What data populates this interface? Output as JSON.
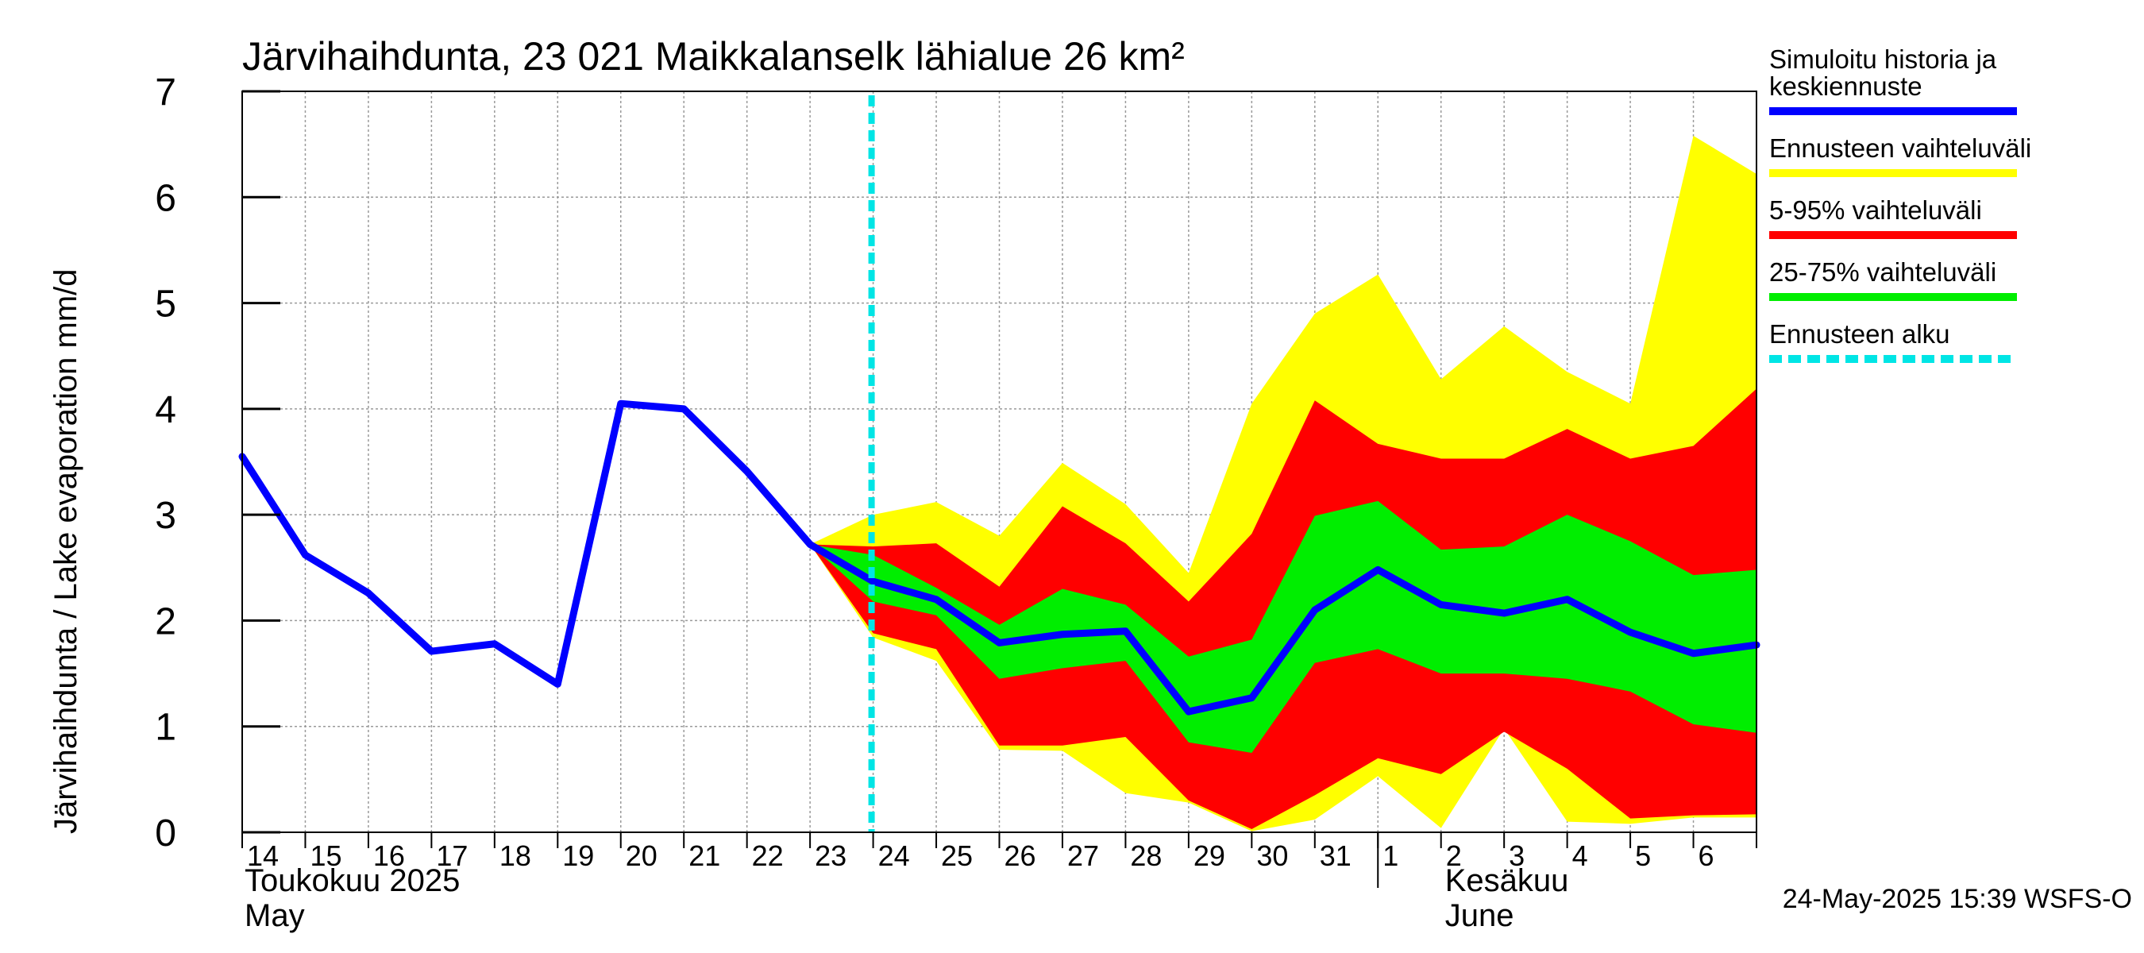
{
  "chart_data": {
    "type": "area",
    "title": "Järvihaihdunta, 23 021 Maikkalanselk lähialue 26 km²",
    "ylabel": "Järvihaihdunta / Lake evaporation   mm/d",
    "ylim": [
      0,
      7
    ],
    "yticks": [
      "0",
      "1",
      "2",
      "3",
      "4",
      "5",
      "6",
      "7"
    ],
    "grid": true,
    "legend_position": "right",
    "day_labels": [
      "14",
      "15",
      "16",
      "17",
      "18",
      "19",
      "20",
      "21",
      "22",
      "23",
      "24",
      "25",
      "26",
      "27",
      "28",
      "29",
      "30",
      "31",
      "1",
      "2",
      "3",
      "4",
      "5",
      "6"
    ],
    "month_labels": [
      {
        "line1": "Toukokuu  2025",
        "line2": "May"
      },
      {
        "line1": "Kesäkuu",
        "line2": "June"
      }
    ],
    "x_start_day": 14,
    "x_end_day": 38,
    "forecast_start_day": 24,
    "series": [
      {
        "name": "Simuloitu historia ja keskiennuste",
        "role": "median",
        "color": "#0000ff",
        "x": [
          14,
          15,
          16,
          17,
          18,
          19,
          20,
          21,
          22,
          23,
          24,
          25,
          26,
          27,
          28,
          29,
          30,
          31,
          32,
          33,
          34,
          35,
          36,
          37,
          38
        ],
        "values": [
          3.55,
          2.62,
          2.26,
          1.71,
          1.78,
          1.4,
          4.05,
          4.0,
          3.41,
          2.72,
          2.37,
          2.2,
          1.79,
          1.87,
          1.9,
          1.14,
          1.27,
          2.1,
          2.48,
          2.15,
          2.07,
          2.2,
          1.89,
          1.69,
          1.77
        ]
      },
      {
        "name": "Ennusteen vaihteluväli",
        "role": "band",
        "color": "#ffff00",
        "x": [
          23,
          24,
          25,
          26,
          27,
          28,
          29,
          30,
          31,
          32,
          33,
          34,
          35,
          36,
          37,
          38
        ],
        "upper": [
          2.72,
          3.0,
          3.12,
          2.8,
          3.49,
          3.1,
          2.45,
          4.05,
          4.9,
          5.27,
          4.28,
          4.78,
          4.35,
          4.05,
          6.58,
          6.22
        ],
        "lower": [
          2.72,
          1.84,
          1.62,
          0.78,
          0.77,
          0.37,
          0.28,
          0.01,
          0.12,
          0.53,
          0.04,
          0.98,
          0.1,
          0.08,
          0.14,
          0.14
        ]
      },
      {
        "name": "5-95% vaihteluväli",
        "role": "band",
        "color": "#ff0000",
        "x": [
          23,
          24,
          25,
          26,
          27,
          28,
          29,
          30,
          31,
          32,
          33,
          34,
          35,
          36,
          37,
          38
        ],
        "upper": [
          2.72,
          2.7,
          2.73,
          2.32,
          3.08,
          2.73,
          2.18,
          2.82,
          4.08,
          3.67,
          3.53,
          3.53,
          3.81,
          3.53,
          3.65,
          4.19
        ],
        "lower": [
          2.72,
          1.88,
          1.73,
          0.82,
          0.82,
          0.9,
          0.3,
          0.03,
          0.35,
          0.7,
          0.55,
          0.95,
          0.6,
          0.13,
          0.16,
          0.17
        ]
      },
      {
        "name": "25-75% vaihteluväli",
        "role": "band",
        "color": "#00ee00",
        "x": [
          23,
          24,
          25,
          26,
          27,
          28,
          29,
          30,
          31,
          32,
          33,
          34,
          35,
          36,
          37,
          38
        ],
        "upper": [
          2.72,
          2.62,
          2.31,
          1.96,
          2.3,
          2.15,
          1.66,
          1.82,
          2.99,
          3.13,
          2.67,
          2.7,
          3.0,
          2.75,
          2.43,
          2.48
        ],
        "lower": [
          2.72,
          2.18,
          2.05,
          1.45,
          1.55,
          1.62,
          0.85,
          0.75,
          1.6,
          1.73,
          1.5,
          1.5,
          1.45,
          1.33,
          1.02,
          0.94
        ]
      },
      {
        "name": "Ennusteen alku",
        "role": "marker",
        "color": "#00e5e5"
      }
    ],
    "legend": [
      {
        "line1": "Simuloitu historia ja",
        "line2": "keskiennuste",
        "color": "#0000ff",
        "style": "solid"
      },
      {
        "line1": "Ennusteen vaihteluväli",
        "line2": "",
        "color": "#ffff00",
        "style": "solid"
      },
      {
        "line1": "5-95% vaihteluväli",
        "line2": "",
        "color": "#ff0000",
        "style": "solid"
      },
      {
        "line1": "25-75% vaihteluväli",
        "line2": "",
        "color": "#00ee00",
        "style": "solid"
      },
      {
        "line1": "Ennusteen alku",
        "line2": "",
        "color": "#00e5e5",
        "style": "dashed"
      }
    ]
  },
  "footer": {
    "timestamp": "24-May-2025 15:39 WSFS-O"
  }
}
